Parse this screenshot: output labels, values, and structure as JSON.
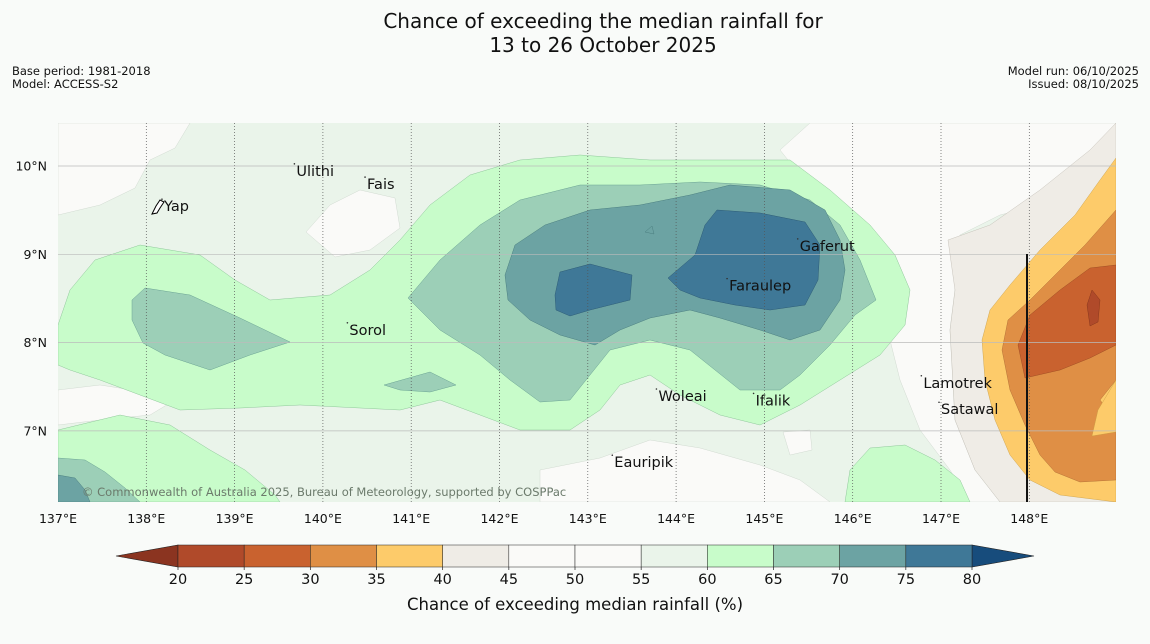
{
  "title": {
    "line1": "Chance of exceeding the median rainfall for",
    "line2": "13 to 26 October 2025"
  },
  "meta": {
    "base_period": "Base period: 1981-2018",
    "model": "Model: ACCESS-S2",
    "model_run": "Model run: 06/10/2025",
    "issued": "Issued: 08/10/2025"
  },
  "map": {
    "lon_labels": [
      "137°E",
      "138°E",
      "139°E",
      "140°E",
      "141°E",
      "142°E",
      "143°E",
      "144°E",
      "145°E",
      "146°E",
      "147°E",
      "148°E"
    ],
    "lat_labels": [
      "10°N",
      "9°N",
      "8°N",
      "7°N"
    ],
    "places": [
      {
        "name": "Yap",
        "lon": 138.2,
        "lat": 9.5
      },
      {
        "name": "Ulithi",
        "lon": 139.7,
        "lat": 9.9
      },
      {
        "name": "Fais",
        "lon": 140.5,
        "lat": 9.75
      },
      {
        "name": "Gaferut",
        "lon": 145.4,
        "lat": 9.05
      },
      {
        "name": "Faraulep",
        "lon": 144.6,
        "lat": 8.6
      },
      {
        "name": "Sorol",
        "lon": 140.3,
        "lat": 8.1
      },
      {
        "name": "Lamotrek",
        "lon": 146.8,
        "lat": 7.5
      },
      {
        "name": "Satawal",
        "lon": 147.0,
        "lat": 7.2
      },
      {
        "name": "Woleai",
        "lon": 143.8,
        "lat": 7.35
      },
      {
        "name": "Ifalik",
        "lon": 144.9,
        "lat": 7.3
      },
      {
        "name": "Eauripik",
        "lon": 143.3,
        "lat": 6.6
      }
    ],
    "copyright": "© Commonwealth of Australia 2025, Bureau of Meteorology, supported by COSPPac"
  },
  "legend": {
    "title": "Chance of exceeding median rainfall (%)",
    "ticks": [
      "20",
      "25",
      "30",
      "35",
      "40",
      "45",
      "50",
      "55",
      "60",
      "65",
      "70",
      "75",
      "80"
    ],
    "colors": {
      "below20": "#8b3420",
      "c20": "#b04a2a",
      "c25": "#c9622f",
      "c30": "#df8f45",
      "c35": "#fdcb6a",
      "c40": "#efece6",
      "c45": "#fafaf8",
      "c50": "#fafaf8",
      "c55": "#eaf4ea",
      "c60": "#c8fcca",
      "c65": "#9ccfb7",
      "c70": "#6ca3a3",
      "c75": "#3f7897",
      "above80": "#174c7c"
    }
  }
}
